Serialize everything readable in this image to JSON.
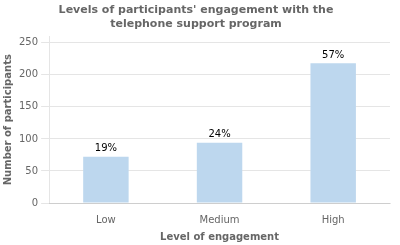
{
  "chart_data": {
    "type": "bar",
    "title": [
      "Levels of participants' engagement with the",
      "telephone support program"
    ],
    "xlabel": "Level of engagement",
    "ylabel": "Number of participants",
    "categories": [
      "Low",
      "Medium",
      "High"
    ],
    "values": [
      72,
      94,
      218
    ],
    "value_labels": [
      "19%",
      "24%",
      "57%"
    ],
    "color": "#bdd7ee",
    "ylim": [
      0,
      260
    ],
    "yticks": [
      0,
      50,
      100,
      150,
      200,
      250
    ],
    "grid": true
  }
}
